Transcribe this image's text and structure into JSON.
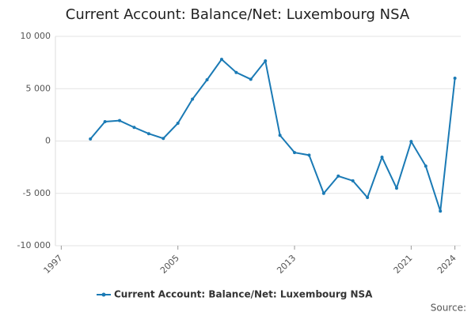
{
  "chart_data": {
    "type": "line",
    "title": "Current Account: Balance/Net: Luxembourg NSA",
    "source": "Source:",
    "x": [
      1999,
      2000,
      2001,
      2002,
      2003,
      2004,
      2005,
      2006,
      2007,
      2008,
      2009,
      2010,
      2011,
      2012,
      2013,
      2014,
      2015,
      2016,
      2017,
      2018,
      2019,
      2020,
      2021,
      2022,
      2023,
      2024
    ],
    "series": [
      {
        "name": "Current Account: Balance/Net: Luxembourg NSA",
        "color": "#1a7ab5",
        "values": [
          200,
          1850,
          1950,
          1300,
          700,
          250,
          1700,
          4000,
          5850,
          7800,
          6550,
          5900,
          7650,
          550,
          -1100,
          -1350,
          -5000,
          -3350,
          -3800,
          -5400,
          -1550,
          -4500,
          -50,
          -2400,
          -6700,
          6000
        ]
      }
    ],
    "xlim": [
      1996.6,
      2024.4
    ],
    "xticks": [
      1997,
      2005,
      2013,
      2021,
      2024
    ],
    "ylim": [
      -10000,
      10000
    ],
    "yticks": [
      {
        "value": -10000,
        "label": "-10 000"
      },
      {
        "value": -5000,
        "label": "-5 000"
      },
      0,
      {
        "value": 5000,
        "label": "5 000"
      },
      {
        "value": 10000,
        "label": "10 000"
      }
    ],
    "grid": true,
    "legend": "bottom"
  }
}
